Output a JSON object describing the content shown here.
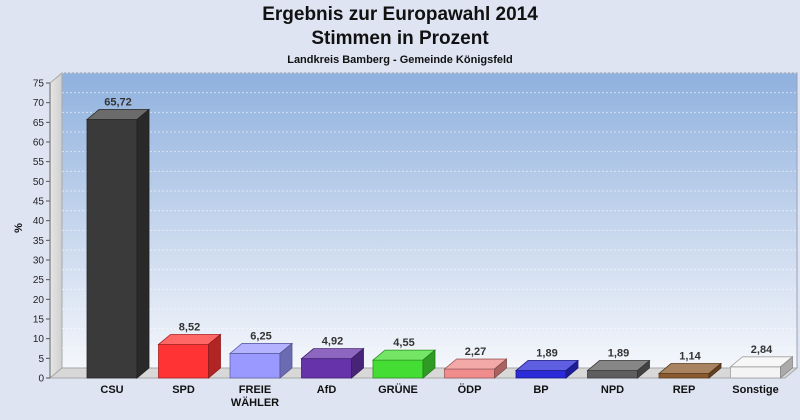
{
  "chart_data": {
    "type": "bar",
    "title": "Ergebnis zur Europawahl 2014",
    "title_line2": "Stimmen in Prozent",
    "subtitle": "Landkreis Bamberg - Gemeinde Königsfeld",
    "ylabel": "%",
    "ylim": [
      0,
      75
    ],
    "yticks": [
      0,
      5,
      10,
      15,
      20,
      25,
      30,
      35,
      40,
      45,
      50,
      55,
      60,
      65,
      70,
      75
    ],
    "grid": true,
    "categories": [
      [
        "CSU"
      ],
      [
        "SPD"
      ],
      [
        "FREIE",
        "WÄHLER"
      ],
      [
        "AfD"
      ],
      [
        "GRÜNE"
      ],
      [
        "ÖDP"
      ],
      [
        "BP"
      ],
      [
        "NPD"
      ],
      [
        "REP"
      ],
      [
        "Sonstige"
      ]
    ],
    "values": [
      65.72,
      8.52,
      6.25,
      4.92,
      4.55,
      2.27,
      1.89,
      1.89,
      1.14,
      2.84
    ],
    "value_labels": [
      "65,72",
      "8,52",
      "6,25",
      "4,92",
      "4,55",
      "2,27",
      "1,89",
      "1,89",
      "1,14",
      "2,84"
    ],
    "colors": [
      "#3a3a3a",
      "#ff3333",
      "#9999ff",
      "#6633aa",
      "#44dd33",
      "#f08c8c",
      "#2a2ad8",
      "#5e5e5e",
      "#8a5a2e",
      "#f4f4f4"
    ]
  }
}
